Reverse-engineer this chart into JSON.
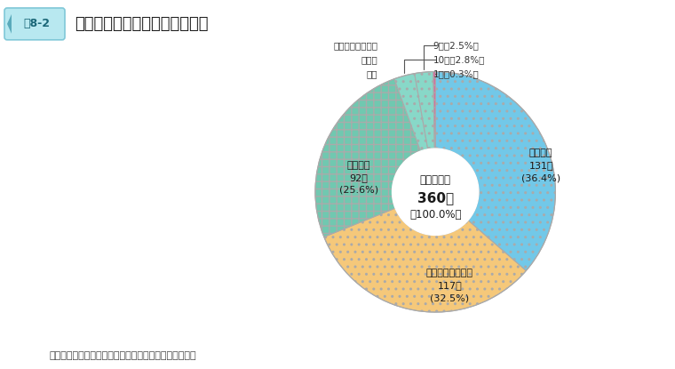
{
  "title_label": "図8-2",
  "title_main": "令和元年度末派遣先機靥別状況",
  "segments": [
    {
      "label": "国際連合",
      "value": 131,
      "pct": "36.4",
      "color": "#72C8E8",
      "hatch": "...."
    },
    {
      "label": "その他の国際機関",
      "value": 117,
      "pct": "32.5",
      "color": "#F5C87A",
      "hatch": "...."
    },
    {
      "label": "外国政府",
      "value": 92,
      "pct": "25.6",
      "color": "#70C8B0",
      "hatch": "xxxx"
    },
    {
      "label": "研究所",
      "value": 10,
      "pct": "2.8",
      "color": "#88D8C8",
      "hatch": "...."
    },
    {
      "label": "指令で定める機関",
      "value": 9,
      "pct": "2.5",
      "color": "#88D8C8",
      "hatch": "...."
    },
    {
      "label": "学校",
      "value": 1,
      "pct": "0.3",
      "color": "#E8509A",
      "hatch": "xxxx"
    }
  ],
  "center_line1": "派遣者総数",
  "center_line2": "360人",
  "center_line3": "（100.0%）",
  "note": "（注）数値は端数処理の関係で合致しないものがある。",
  "bg_color": "#FFFFFF",
  "label_bg_color": "#B8E8F0",
  "label_border_color": "#80C8D8",
  "annotation_color": "#555555",
  "wedge_edge_color": "#AAAAAA",
  "small_labels": [
    {
      "name": "指令で定める機関",
      "count": "9人（2.5%）",
      "seg_idx": 4
    },
    {
      "name": "研究所",
      "count": "10人（2.8%）",
      "seg_idx": 3
    },
    {
      "name": "学校",
      "count": "1人（0.3%）",
      "seg_idx": 5
    }
  ]
}
